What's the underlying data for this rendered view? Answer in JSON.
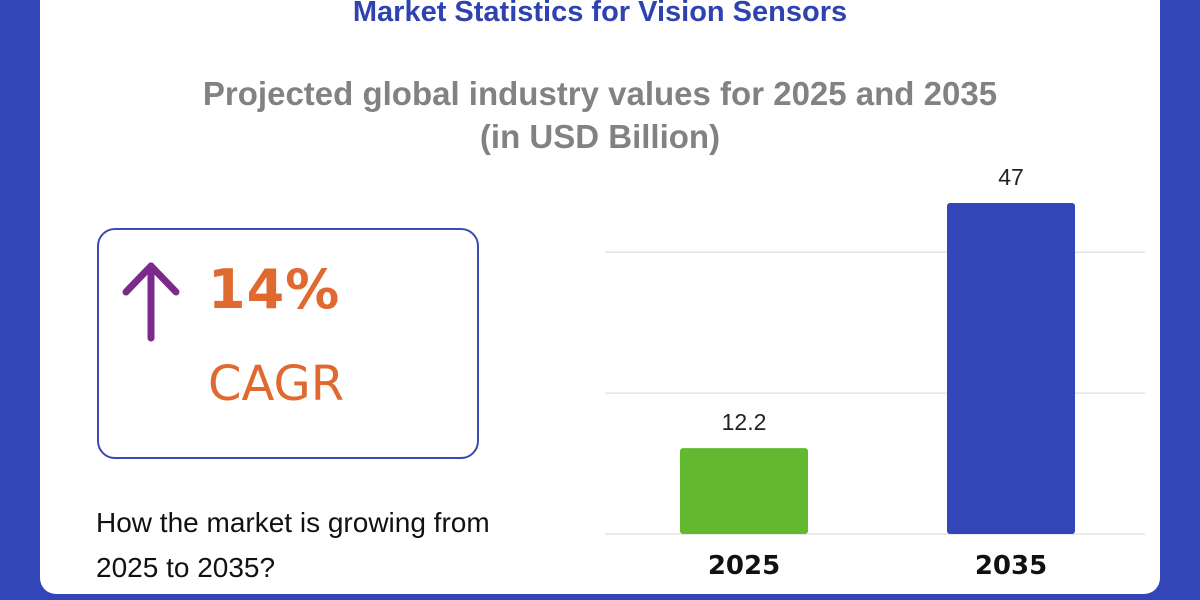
{
  "title": "Market Statistics for Vision Sensors",
  "subtitle_line1": "Projected global industry values for 2025 and 2035",
  "subtitle_line2": "(in USD Billion)",
  "cagr": {
    "value": "14%",
    "label": "CAGR",
    "icon": "arrow-up-icon",
    "arrow_color": "#7b2a8c",
    "text_color": "#e0692f"
  },
  "question": "How the market is growing from 2025 to 2035?",
  "chart_data": {
    "type": "bar",
    "categories": [
      "2025",
      "2035"
    ],
    "values": [
      12.2,
      47
    ],
    "data_labels": [
      "12.2",
      "47"
    ],
    "colors": [
      "#62b92f",
      "#3246b8"
    ],
    "title": "Projected global industry values for 2025 and 2035 (in USD Billion)",
    "xlabel": "",
    "ylabel": "",
    "ylim": [
      0,
      47
    ],
    "gridlines": [
      0,
      20,
      40
    ],
    "grid": true
  }
}
